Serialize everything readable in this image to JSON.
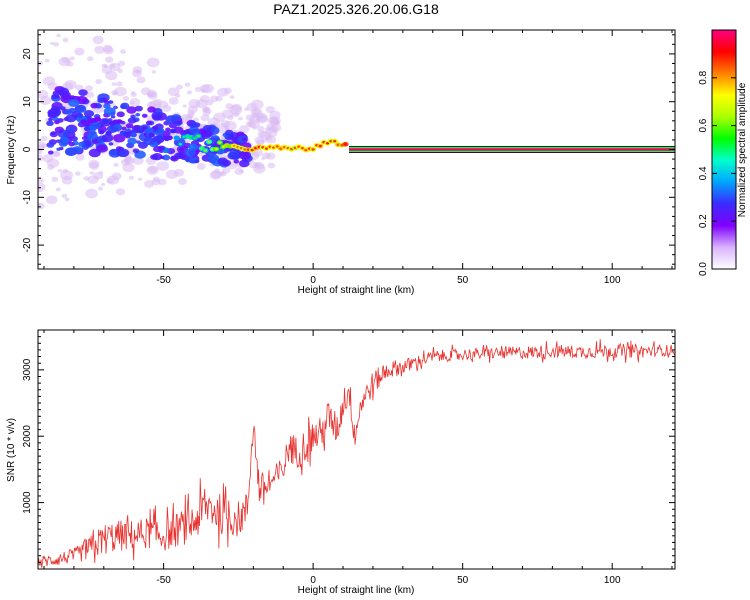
{
  "title": "PAZ1.2025.326.20.06.G18",
  "chart_data": [
    {
      "type": "heatmap",
      "xlabel": "Height of straight line (km)",
      "ylabel": "Frequency (Hz)",
      "xlim": [
        -92,
        121
      ],
      "ylim": [
        -25,
        25
      ],
      "xticks": [
        -50,
        0,
        50,
        100
      ],
      "yticks": [
        -20,
        -10,
        0,
        10,
        20
      ],
      "colorbar": {
        "label": "Normalized spectral amplitude",
        "range": [
          0,
          1
        ],
        "ticks": [
          0.0,
          0.2,
          0.4,
          0.6,
          0.8
        ],
        "tick_labels": [
          "0.0",
          "0.2",
          "0.4",
          "0.6",
          "0.8"
        ],
        "colormap": [
          "#ffffff",
          "#d9b3ff",
          "#8000ff",
          "#3a2bff",
          "#00a5ff",
          "#00ffcc",
          "#00ff00",
          "#aaff00",
          "#ffff00",
          "#ff8000",
          "#ff0000",
          "#ff0080"
        ]
      },
      "ridge_points": [
        {
          "x": -80,
          "y": 6,
          "v": 0.25
        },
        {
          "x": -70,
          "y": 5,
          "v": 0.22
        },
        {
          "x": -60,
          "y": 4,
          "v": 0.25
        },
        {
          "x": -50,
          "y": 3,
          "v": 0.28
        },
        {
          "x": -45,
          "y": 2.5,
          "v": 0.32
        },
        {
          "x": -40,
          "y": 1.5,
          "v": 0.4
        },
        {
          "x": -35,
          "y": 1,
          "v": 0.48
        },
        {
          "x": -30,
          "y": 0.5,
          "v": 0.6
        },
        {
          "x": -20,
          "y": 0.2,
          "v": 0.75
        },
        {
          "x": -10,
          "y": 0.3,
          "v": 0.7
        },
        {
          "x": 0,
          "y": 0.2,
          "v": 0.72
        },
        {
          "x": 5,
          "y": 1.5,
          "v": 0.75
        },
        {
          "x": 10,
          "y": 1.2,
          "v": 0.7
        },
        {
          "x": 12,
          "y": 0,
          "v": 0.95
        },
        {
          "x": 50,
          "y": 0,
          "v": 0.97
        },
        {
          "x": 121,
          "y": 0,
          "v": 0.97
        }
      ],
      "colors": {
        "scatter_light": "#d2b4f5",
        "scatter_core": "#7a1cf0",
        "line_center": "#ff1a1a"
      }
    },
    {
      "type": "line",
      "xlabel": "Height of straight line (km)",
      "ylabel": "SNR (10 * v/v)",
      "xlim": [
        -92,
        121
      ],
      "ylim": [
        0,
        3600
      ],
      "xticks": [
        -50,
        0,
        50,
        100
      ],
      "yticks": [
        1000,
        2000,
        3000
      ],
      "series": [
        {
          "color": "#e8322f",
          "x": [
            -92,
            -85,
            -80,
            -75,
            -70,
            -65,
            -60,
            -55,
            -50,
            -45,
            -40,
            -35,
            -30,
            -25,
            -22,
            -20,
            -18,
            -15,
            -10,
            -8,
            -5,
            0,
            3,
            5,
            8,
            10,
            12,
            14,
            16,
            20,
            25,
            30,
            40,
            50,
            60,
            70,
            80,
            90,
            100,
            110,
            121
          ],
          "y": [
            100,
            150,
            200,
            300,
            450,
            500,
            500,
            550,
            500,
            600,
            700,
            950,
            800,
            750,
            900,
            2200,
            1200,
            1250,
            1500,
            1850,
            1750,
            2000,
            2050,
            2300,
            2100,
            2500,
            2700,
            2000,
            2500,
            2800,
            3000,
            3050,
            3200,
            3230,
            3250,
            3260,
            3280,
            3270,
            3290,
            3280,
            3300
          ],
          "noise": [
            90,
            100,
            110,
            180,
            240,
            240,
            240,
            240,
            240,
            260,
            300,
            320,
            300,
            280,
            280,
            220,
            260,
            200,
            220,
            240,
            240,
            260,
            240,
            260,
            240,
            260,
            240,
            220,
            200,
            180,
            140,
            110,
            90,
            90,
            90,
            100,
            100,
            100,
            110,
            100,
            80
          ]
        }
      ]
    }
  ]
}
